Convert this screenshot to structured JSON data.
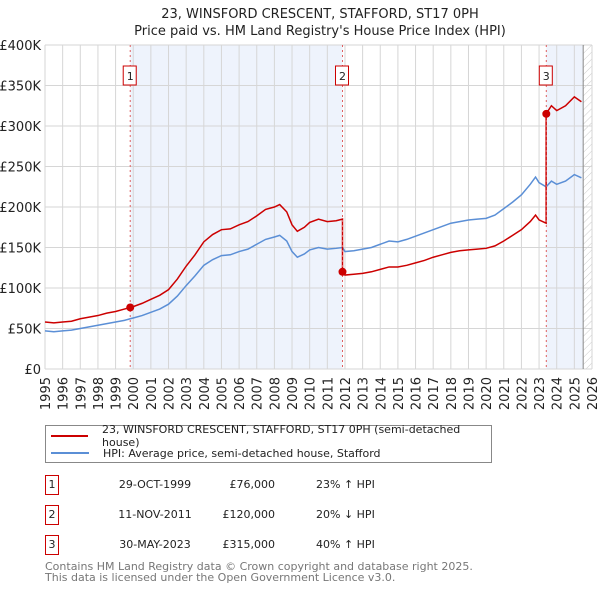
{
  "chart_data": {
    "type": "line",
    "title": "23, WINSFORD CRESCENT, STAFFORD, ST17 0PH",
    "subtitle": "Price paid vs. HM Land Registry's House Price Index (HPI)",
    "xlim": [
      1995,
      2026
    ],
    "ylim": [
      0,
      400000
    ],
    "x_ticks": [
      "1995",
      "1996",
      "1997",
      "1998",
      "1999",
      "2000",
      "2001",
      "2002",
      "2003",
      "2004",
      "2005",
      "2006",
      "2007",
      "2008",
      "2009",
      "2010",
      "2011",
      "2012",
      "2013",
      "2014",
      "2015",
      "2016",
      "2017",
      "2018",
      "2019",
      "2020",
      "2021",
      "2022",
      "2023",
      "2024",
      "2025",
      "2026"
    ],
    "y_ticks": [
      {
        "v": 0,
        "l": "£0"
      },
      {
        "v": 50000,
        "l": "£50K"
      },
      {
        "v": 100000,
        "l": "£100K"
      },
      {
        "v": 150000,
        "l": "£150K"
      },
      {
        "v": 200000,
        "l": "£200K"
      },
      {
        "v": 250000,
        "l": "£250K"
      },
      {
        "v": 300000,
        "l": "£300K"
      },
      {
        "v": 350000,
        "l": "£350K"
      },
      {
        "v": 400000,
        "l": "£400K"
      }
    ],
    "grid": true,
    "colors": {
      "property": "#cc0000",
      "hpi": "#5b8fd6",
      "shade": "#eef3fc"
    },
    "series": [
      {
        "name": "23, WINSFORD CRESCENT, STAFFORD, ST17 0PH (semi-detached house)",
        "x": [
          1995,
          1995.5,
          1996,
          1996.5,
          1997,
          1997.5,
          1998,
          1998.5,
          1999,
          1999.5,
          1999.83,
          2000,
          2000.5,
          2001,
          2001.5,
          2002,
          2002.5,
          2003,
          2003.5,
          2004,
          2004.5,
          2005,
          2005.5,
          2006,
          2006.5,
          2007,
          2007.5,
          2008,
          2008.3,
          2008.7,
          2009,
          2009.3,
          2009.7,
          2010,
          2010.5,
          2011,
          2011.5,
          2011.86,
          2011.86,
          2012,
          2012.5,
          2013,
          2013.5,
          2014,
          2014.5,
          2015,
          2015.5,
          2016,
          2016.5,
          2017,
          2017.5,
          2018,
          2018.5,
          2019,
          2019.5,
          2020,
          2020.5,
          2021,
          2021.5,
          2022,
          2022.5,
          2022.8,
          2023,
          2023.4,
          2023.4,
          2023.7,
          2024,
          2024.5,
          2025,
          2025.4
        ],
        "values": [
          58000,
          57000,
          58000,
          59000,
          62000,
          64000,
          66000,
          69000,
          71000,
          74000,
          76000,
          77000,
          81000,
          86000,
          91000,
          98000,
          111000,
          127000,
          141000,
          157000,
          166000,
          172000,
          173000,
          178000,
          182000,
          189000,
          197000,
          200000,
          203000,
          194000,
          178000,
          170000,
          175000,
          181000,
          185000,
          182000,
          183000,
          185000,
          120000,
          116000,
          117000,
          118000,
          120000,
          123000,
          126000,
          126000,
          128000,
          131000,
          134000,
          138000,
          141000,
          144000,
          146000,
          147000,
          148000,
          149000,
          152000,
          158000,
          165000,
          172000,
          182000,
          190000,
          184000,
          180000,
          315000,
          325000,
          319000,
          325000,
          336000,
          330000
        ]
      },
      {
        "name": "HPI: Average price, semi-detached house, Stafford",
        "x": [
          1995,
          1995.5,
          1996,
          1996.5,
          1997,
          1997.5,
          1998,
          1998.5,
          1999,
          1999.5,
          1999.83,
          2000,
          2000.5,
          2001,
          2001.5,
          2002,
          2002.5,
          2003,
          2003.5,
          2004,
          2004.5,
          2005,
          2005.5,
          2006,
          2006.5,
          2007,
          2007.5,
          2008,
          2008.3,
          2008.7,
          2009,
          2009.3,
          2009.7,
          2010,
          2010.5,
          2011,
          2011.5,
          2011.86,
          2012,
          2012.5,
          2013,
          2013.5,
          2014,
          2014.5,
          2015,
          2015.5,
          2016,
          2016.5,
          2017,
          2017.5,
          2018,
          2018.5,
          2019,
          2019.5,
          2020,
          2020.5,
          2021,
          2021.5,
          2022,
          2022.5,
          2022.8,
          2023,
          2023.4,
          2023.7,
          2024,
          2024.5,
          2025,
          2025.4
        ],
        "values": [
          47000,
          46000,
          47000,
          48000,
          50000,
          52000,
          54000,
          56000,
          58000,
          60000,
          62000,
          63000,
          66000,
          70000,
          74000,
          80000,
          90000,
          103000,
          115000,
          128000,
          135000,
          140000,
          141000,
          145000,
          148000,
          154000,
          160000,
          163000,
          165000,
          158000,
          145000,
          138000,
          142000,
          147000,
          150000,
          148000,
          149000,
          150000,
          145000,
          146000,
          148000,
          150000,
          154000,
          158000,
          157000,
          160000,
          164000,
          168000,
          172000,
          176000,
          180000,
          182000,
          184000,
          185000,
          186000,
          190000,
          198000,
          206000,
          215000,
          228000,
          237000,
          230000,
          225000,
          232000,
          228000,
          232000,
          240000,
          236000
        ]
      }
    ],
    "sales": [
      {
        "label": "1",
        "x": 1999.83,
        "value": 76000
      },
      {
        "label": "2",
        "x": 2011.86,
        "value": 120000
      },
      {
        "label": "3",
        "x": 2023.41,
        "value": 315000
      }
    ],
    "data_end": 2025.5
  },
  "legend": {
    "property": "23, WINSFORD CRESCENT, STAFFORD, ST17 0PH (semi-detached house)",
    "hpi": "HPI: Average price, semi-detached house, Stafford"
  },
  "transactions": [
    {
      "num": "1",
      "date": "29-OCT-1999",
      "price": "£76,000",
      "hpi": "23% ↑ HPI"
    },
    {
      "num": "2",
      "date": "11-NOV-2011",
      "price": "£120,000",
      "hpi": "20% ↓ HPI"
    },
    {
      "num": "3",
      "date": "30-MAY-2023",
      "price": "£315,000",
      "hpi": "40% ↑ HPI"
    }
  ],
  "footer": {
    "line1": "Contains HM Land Registry data © Crown copyright and database right 2025.",
    "line2": "This data is licensed under the Open Government Licence v3.0."
  }
}
